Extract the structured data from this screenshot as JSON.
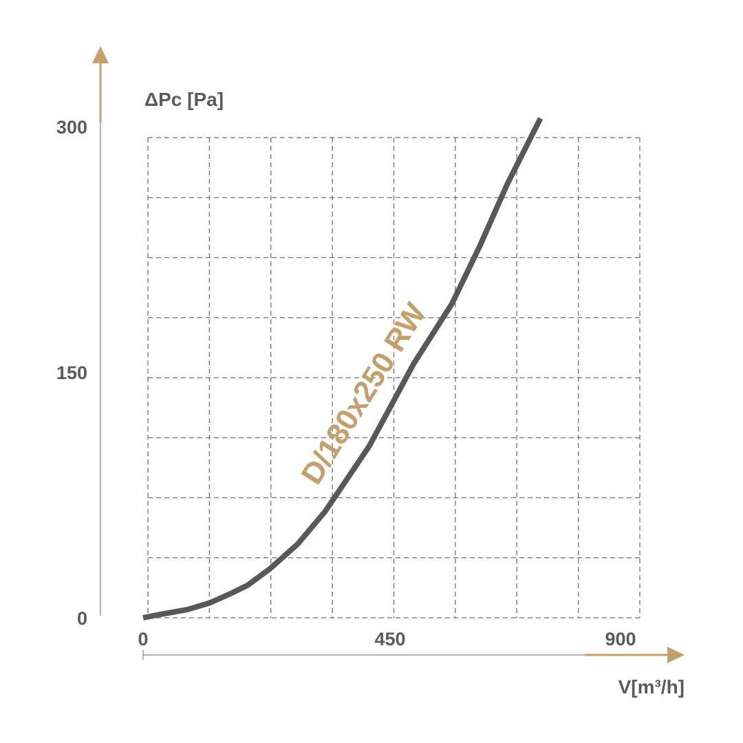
{
  "chart_data": {
    "type": "line",
    "x_label": "V[m³/h]",
    "y_label": "ΔPc [Pa]",
    "x_ticks": [
      "0",
      "450",
      "900"
    ],
    "y_ticks": [
      "0",
      "150",
      "300"
    ],
    "xlim": [
      0,
      900
    ],
    "ylim": [
      0,
      300
    ],
    "grid": true,
    "series": [
      {
        "name": "D/180x250 RW",
        "x": [
          0,
          30,
          80,
          120,
          160,
          190,
          230,
          280,
          330,
          360,
          410,
          450,
          490,
          560,
          610,
          660,
          720
        ],
        "y": [
          0,
          2,
          5,
          9,
          15,
          20,
          30,
          45,
          65,
          80,
          105,
          130,
          155,
          192,
          227,
          265,
          305
        ]
      }
    ]
  },
  "colors": {
    "accent": "#c4a06a",
    "line": "#58585c",
    "grid": "#6f6f74",
    "axis": "#9a9a9e",
    "text": "#5b5b5f"
  }
}
